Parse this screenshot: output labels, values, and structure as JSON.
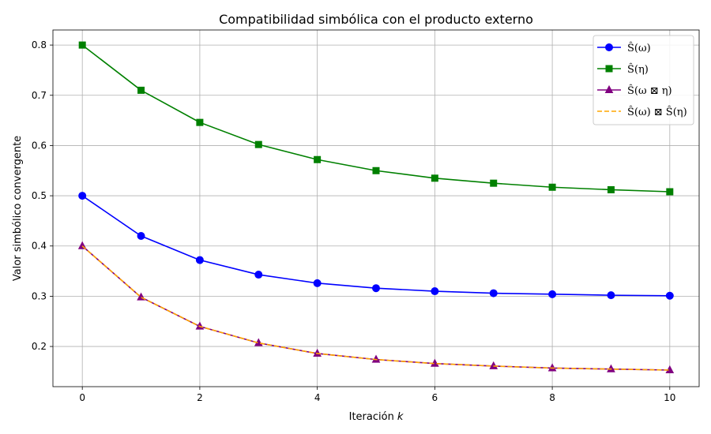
{
  "chart_data": {
    "type": "line",
    "title": "Compatibilidad simbólica con el producto externo",
    "xlabel": "Iteración",
    "xlabel_var": "k",
    "ylabel": "Valor simbólico convergente",
    "xlim": [
      -0.5,
      10.5
    ],
    "ylim": [
      0.12,
      0.83
    ],
    "x": [
      0,
      1,
      2,
      3,
      4,
      5,
      6,
      7,
      8,
      9,
      10
    ],
    "xticks": [
      0,
      2,
      4,
      6,
      8,
      10
    ],
    "xtick_labels": [
      "0",
      "2",
      "4",
      "6",
      "8",
      "10"
    ],
    "yticks": [
      0.2,
      0.3,
      0.4,
      0.5,
      0.6,
      0.7,
      0.8
    ],
    "ytick_labels": [
      "0.2",
      "0.3",
      "0.4",
      "0.5",
      "0.6",
      "0.7",
      "0.8"
    ],
    "grid": true,
    "legend_position": "top-right",
    "series": [
      {
        "name": "Ŝ(ω)",
        "color": "#0000ff",
        "marker": "circle",
        "dash": "solid",
        "values": [
          0.5,
          0.42,
          0.372,
          0.343,
          0.326,
          0.316,
          0.31,
          0.306,
          0.304,
          0.302,
          0.301
        ]
      },
      {
        "name": "Ŝ(η)",
        "color": "#008000",
        "marker": "square",
        "dash": "solid",
        "values": [
          0.8,
          0.71,
          0.646,
          0.602,
          0.572,
          0.55,
          0.535,
          0.525,
          0.517,
          0.512,
          0.508
        ]
      },
      {
        "name": "Ŝ(ω ⊠ η)",
        "color": "#800080",
        "marker": "triangle",
        "dash": "solid",
        "values": [
          0.4,
          0.298,
          0.24,
          0.207,
          0.186,
          0.174,
          0.166,
          0.161,
          0.157,
          0.155,
          0.153
        ]
      },
      {
        "name": "Ŝ(ω) ⊠ Ŝ(η)",
        "color": "#ffa500",
        "marker": "none",
        "dash": "dashed",
        "values": [
          0.4,
          0.298,
          0.24,
          0.207,
          0.186,
          0.174,
          0.166,
          0.161,
          0.157,
          0.155,
          0.153
        ]
      }
    ]
  }
}
